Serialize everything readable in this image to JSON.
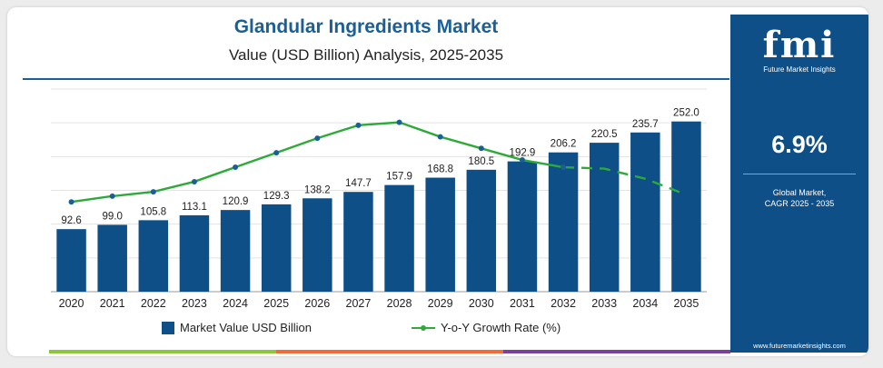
{
  "header": {
    "title": "Glandular Ingredients Market",
    "subtitle": "Value (USD Billion) Analysis, 2025-2035"
  },
  "sidebar": {
    "logo_text": "fmi",
    "logo_subtitle": "Future Market Insights",
    "cagr_value": "6.9%",
    "cagr_label_line1": "Global Market,",
    "cagr_label_line2": "CAGR 2025 - 2035",
    "website": "www.futuremarketinsights.com"
  },
  "colors": {
    "bar": "#0d4f86",
    "line": "#2eaa3a",
    "title": "#1a5f96",
    "sidebar_bg": "#0d4f86",
    "bottom_bar": [
      "#8cc63f",
      "#f26b3a",
      "#7b3fa0"
    ]
  },
  "chart_data": {
    "type": "bar",
    "categories": [
      "2020",
      "2021",
      "2022",
      "2023",
      "2024",
      "2025",
      "2026",
      "2027",
      "2028",
      "2029",
      "2030",
      "2031",
      "2032",
      "2033",
      "2034",
      "2035"
    ],
    "series": [
      {
        "name": "Market Value USD Billion",
        "type": "bar",
        "values": [
          92.6,
          99.0,
          105.8,
          113.1,
          120.9,
          129.3,
          138.2,
          147.7,
          157.9,
          168.8,
          180.5,
          192.9,
          206.2,
          220.5,
          235.7,
          252.0
        ],
        "labels": [
          "92.6",
          "99.0",
          "105.8",
          "113.1",
          "120.9",
          "129.3",
          "138.2",
          "147.7",
          "157.9",
          "168.8",
          "180.5",
          "192.9",
          "206.2",
          "220.5",
          "235.7",
          "252.0"
        ]
      },
      {
        "name": "Y-o-Y Growth Rate (%)",
        "type": "line",
        "values": [
          6.2,
          6.6,
          6.9,
          7.6,
          8.6,
          9.6,
          10.6,
          11.5,
          11.7,
          10.7,
          9.9,
          9.1,
          8.6,
          8.5,
          7.8,
          6.7
        ],
        "projected_from_index": 12
      }
    ],
    "ylim": [
      0,
      300
    ],
    "line_ylim": [
      0,
      14
    ],
    "grid": "horizontal",
    "legend_position": "bottom"
  }
}
